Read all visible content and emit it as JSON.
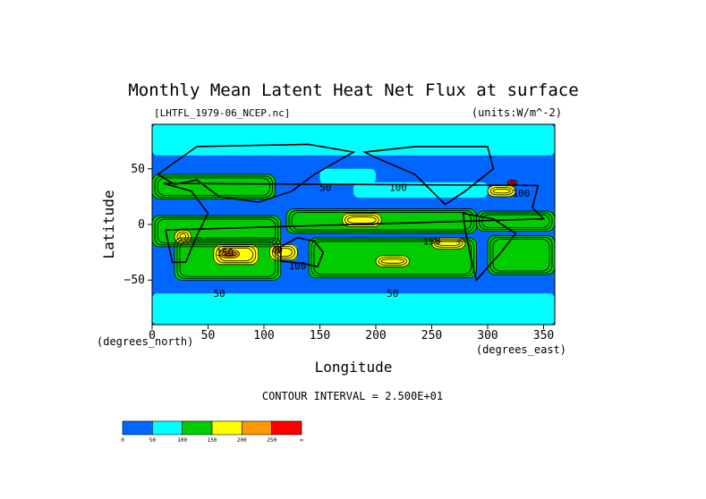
{
  "chart_data": {
    "type": "heatmap",
    "title": "Monthly Mean Latent Heat Net Flux at surface",
    "file_label": "[LHTFL_1979-06_NCEP.nc]",
    "units_label": "(units:W/m^-2)",
    "xlabel": "Longitude",
    "ylabel": "Latitude",
    "x_unit_label": "(degrees_east)",
    "y_unit_label": "(degrees_north)",
    "xlim": [
      0,
      360
    ],
    "ylim": [
      -90,
      90
    ],
    "x_ticks": [
      {
        "value": 0,
        "label": "0"
      },
      {
        "value": 50,
        "label": "50"
      },
      {
        "value": 100,
        "label": "100"
      },
      {
        "value": 150,
        "label": "150"
      },
      {
        "value": 200,
        "label": "200"
      },
      {
        "value": 250,
        "label": "250"
      },
      {
        "value": 300,
        "label": "300"
      },
      {
        "value": 350,
        "label": "350"
      }
    ],
    "y_ticks": [
      {
        "value": 50,
        "label": "50"
      },
      {
        "value": 0,
        "label": "0"
      },
      {
        "value": -50,
        "label": "−50"
      }
    ],
    "contour_interval_label": "CONTOUR INTERVAL = 2.500E+01",
    "contour_labels": [
      {
        "x": 155,
        "y": 30,
        "text": "50"
      },
      {
        "x": 220,
        "y": 30,
        "text": "100"
      },
      {
        "x": 330,
        "y": 25,
        "text": "100"
      },
      {
        "x": 250,
        "y": -18,
        "text": "150"
      },
      {
        "x": 65,
        "y": -28,
        "text": "150"
      },
      {
        "x": 130,
        "y": -40,
        "text": "100"
      },
      {
        "x": 60,
        "y": -65,
        "text": "50"
      },
      {
        "x": 215,
        "y": -65,
        "text": "50"
      }
    ],
    "legend": {
      "bins": [
        {
          "label": "0",
          "color": "#0066ff"
        },
        {
          "label": "50",
          "color": "#00ffff"
        },
        {
          "label": "100",
          "color": "#00cc00"
        },
        {
          "label": "150",
          "color": "#ffff00"
        },
        {
          "label": "200",
          "color": "#ff9900"
        },
        {
          "label": "250",
          "color": "#ff0000"
        }
      ],
      "end_label": "∞"
    },
    "grid": false
  }
}
